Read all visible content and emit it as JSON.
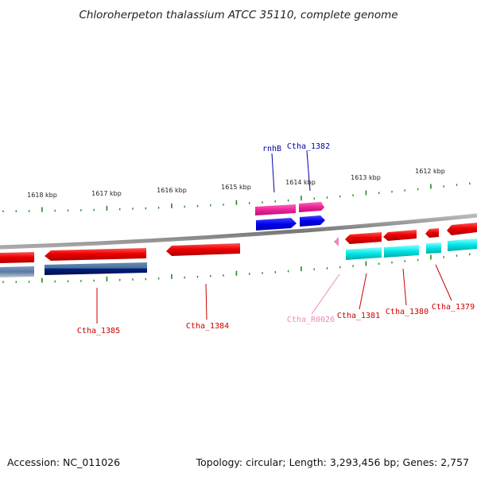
{
  "title": "Chloroherpeton thalassium ATCC 35110, complete genome",
  "footer": {
    "accession": "Accession: NC_011026",
    "summary": "Topology: circular; Length: 3,293,456 bp; Genes: 2,757"
  },
  "scale_labels": [
    "1618 kbp",
    "1617 kbp",
    "1616 kbp",
    "1615 kbp",
    "1614 kbp",
    "1613 kbp",
    "1612 kbp"
  ],
  "gene_labels": [
    {
      "name": "rnhB",
      "color": "#0000aa"
    },
    {
      "name": "Ctha_1382",
      "color": "#0000aa"
    },
    {
      "name": "Ctha_1385",
      "color": "#cc0000"
    },
    {
      "name": "Ctha_1384",
      "color": "#cc0000"
    },
    {
      "name": "Ctha_R0026",
      "color": "#ee88bb"
    },
    {
      "name": "Ctha_1381",
      "color": "#cc0000"
    },
    {
      "name": "Ctha_1380",
      "color": "#cc0000"
    },
    {
      "name": "Ctha_1379",
      "color": "#cc0000"
    }
  ],
  "colors": {
    "gene": "#ee1111",
    "cds": "#0000ee",
    "cds_outer": "#ee2299",
    "cds_lower": "#00dddd",
    "cds_lower_dark": "#001a80",
    "cds_lower_light": "#6a8fb8",
    "rna": "#ee88bb",
    "tick": "#228822",
    "backbone": "#888888"
  }
}
